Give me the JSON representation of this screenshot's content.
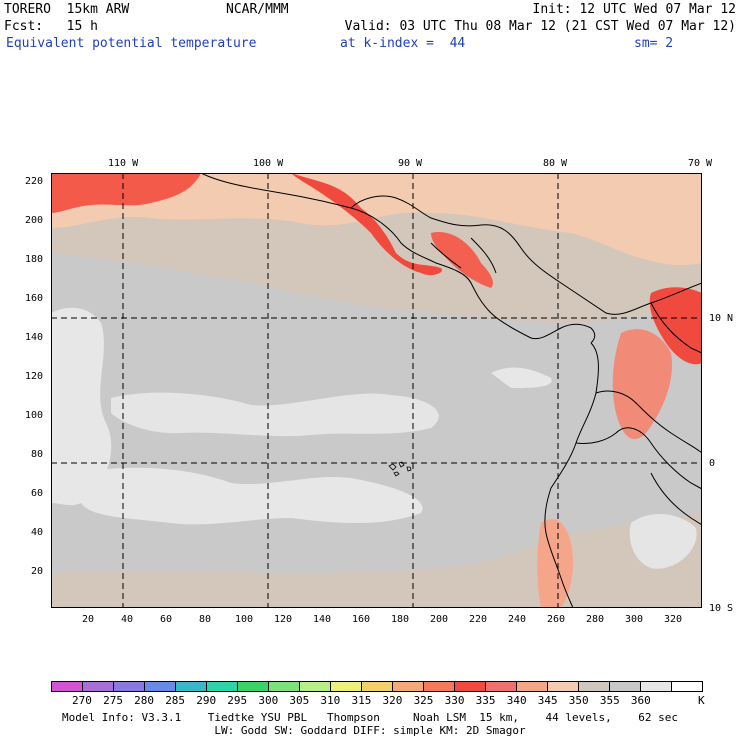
{
  "header": {
    "model": "TORERO  15km ARW",
    "org": "NCAR/MMM",
    "init": "Init: 12 UTC Wed 07 Mar 12",
    "fcst": "Fcst:   15 h",
    "valid": "Valid: 03 UTC Thu 08 Mar 12 (21 CST Wed 07 Mar 12)",
    "field": "Equivalent potential temperature",
    "level": "at k-index =  44",
    "smooth": "sm= 2"
  },
  "map": {
    "lon_labels": [
      "110 W",
      "100 W",
      "90 W",
      "80 W",
      "70 W"
    ],
    "lat_labels": [
      "10 N",
      "0",
      "10 S"
    ],
    "y_ticks": [
      "220",
      "200",
      "180",
      "160",
      "140",
      "120",
      "100",
      "80",
      "60",
      "40",
      "20"
    ],
    "x_ticks": [
      "20",
      "40",
      "60",
      "80",
      "100",
      "120",
      "140",
      "160",
      "180",
      "200",
      "220",
      "240",
      "260",
      "280",
      "300",
      "320"
    ]
  },
  "colorbar": {
    "labels": [
      "270",
      "275",
      "280",
      "285",
      "290",
      "295",
      "300",
      "305",
      "310",
      "315",
      "320",
      "325",
      "330",
      "335",
      "340",
      "345",
      "350",
      "355",
      "360"
    ],
    "unit": "K",
    "colors": [
      "#d452d4",
      "#a86fd8",
      "#8a7ae0",
      "#6a8ae8",
      "#3ab8c8",
      "#2ed3a8",
      "#3ad36a",
      "#7ee07a",
      "#b8ee88",
      "#eef07c",
      "#f3d06c",
      "#f5a878",
      "#f57a5c",
      "#f24a40",
      "#f07070",
      "#f5a58a",
      "#f3cbb0",
      "#cfc6be",
      "#c8c8c8",
      "#e6e6e6",
      "#ffffff"
    ]
  },
  "footer": {
    "line1": "Model Info: V3.3.1    Tiedtke YSU PBL   Thompson     Noah LSM  15 km,    44 levels,    62 sec",
    "line2": "LW: Godd SW: Goddard DIFF: simple KM: 2D Smagor"
  }
}
